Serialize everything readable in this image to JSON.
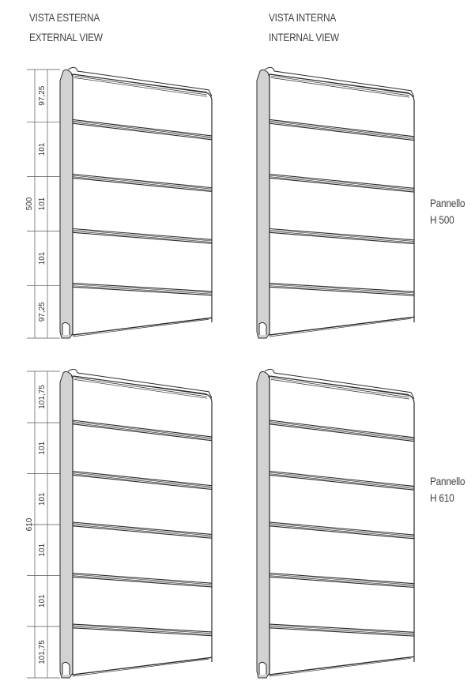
{
  "headers": {
    "external": {
      "line1": "VISTA ESTERNA",
      "line2": "EXTERNAL VIEW"
    },
    "internal": {
      "line1": "VISTA INTERNA",
      "line2": "INTERNAL VIEW"
    }
  },
  "panels": [
    {
      "label_line1": "Pannello",
      "label_line2": "H 500",
      "total": "500",
      "segments": [
        "97,25",
        "101",
        "101",
        "101",
        "97,25"
      ]
    },
    {
      "label_line1": "Pannello",
      "label_line2": "H 610",
      "total": "610",
      "segments": [
        "101,75",
        "101",
        "101",
        "101",
        "101",
        "101,75"
      ]
    }
  ],
  "colors": {
    "stroke": "#2a2a2a",
    "side": "#d2d2d2",
    "panel": "#ffffff"
  }
}
